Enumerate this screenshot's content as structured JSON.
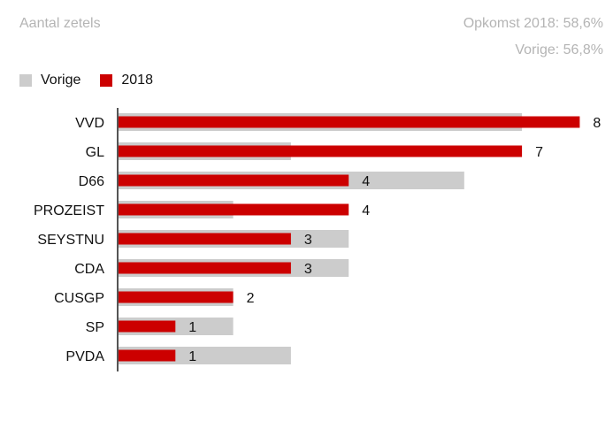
{
  "header": {
    "title": "Aantal zetels",
    "turnout_current": "Opkomst 2018: 58,6%",
    "turnout_previous": "Vorige: 56,8%"
  },
  "legend": [
    {
      "label": "Vorige",
      "color": "#cccccc"
    },
    {
      "label": "2018",
      "color": "#cc0000"
    }
  ],
  "chart_data": {
    "type": "bar",
    "orientation": "horizontal",
    "categories": [
      "VVD",
      "GL",
      "D66",
      "PROZEIST",
      "SEYSTNU",
      "CDA",
      "CUSGP",
      "SP",
      "PVDA"
    ],
    "series": [
      {
        "name": "Vorige",
        "color": "#cccccc",
        "values": [
          7,
          3,
          6,
          2,
          4,
          4,
          2,
          2,
          3
        ]
      },
      {
        "name": "2018",
        "color": "#cc0000",
        "values": [
          8,
          7,
          4,
          4,
          3,
          3,
          2,
          1,
          1
        ]
      }
    ],
    "data_labels": [
      "8",
      "7",
      "4",
      "4",
      "3",
      "3",
      "2",
      "1",
      "1"
    ],
    "xlim": [
      0,
      8
    ],
    "grid": false,
    "legend_position": "top-left"
  }
}
